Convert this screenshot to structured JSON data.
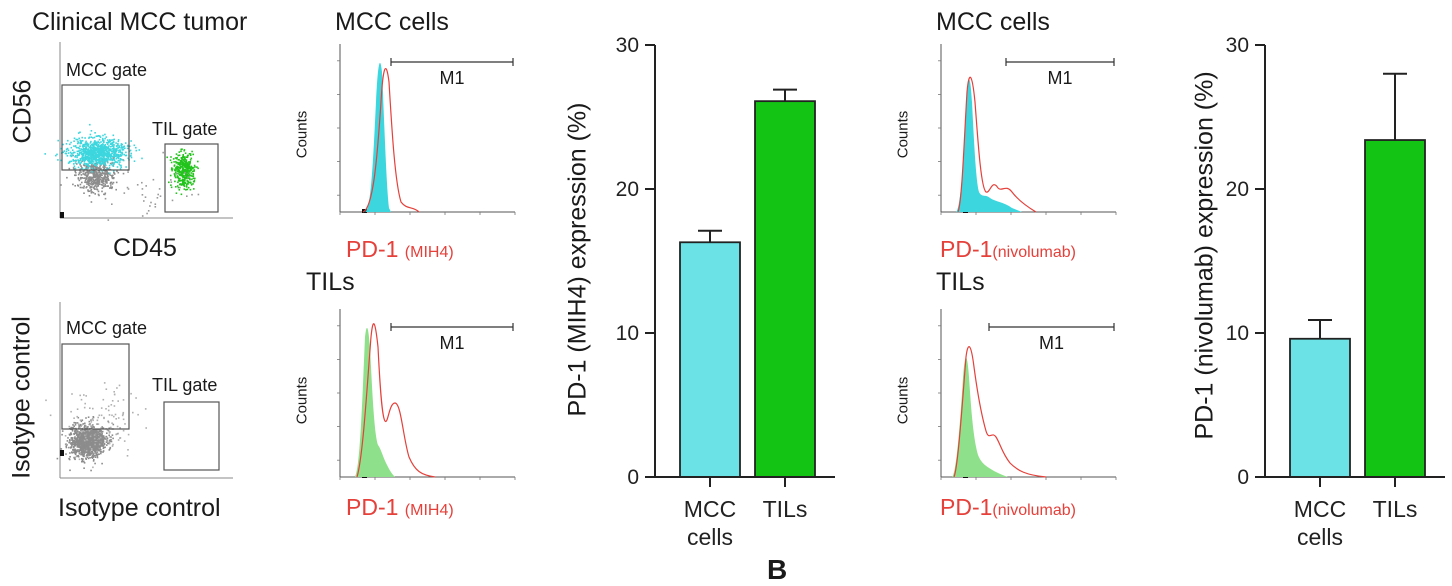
{
  "flow": {
    "top": {
      "title": "Clinical MCC tumor",
      "xlabel": "CD45",
      "ylabel": "CD56",
      "gate1": "MCC gate",
      "gate2": "TIL gate",
      "dot1_color": "#3cd6de",
      "dot2_color": "#22c41c"
    },
    "bottom": {
      "xlabel": "Isotype control",
      "ylabel": "Isotype control",
      "gate1": "MCC gate",
      "gate2": "TIL gate",
      "dot_color": "#8c8c8c"
    }
  },
  "histograms": [
    {
      "title": "MCC cells",
      "ylabel": "Counts",
      "xlabel_main": "PD-1",
      "xlabel_sub": "(MIH4)",
      "marker": "M1",
      "fill": "#3cd6de"
    },
    {
      "title": "TILs",
      "ylabel": "Counts",
      "xlabel_main": "PD-1",
      "xlabel_sub": "(MIH4)",
      "marker": "M1",
      "fill": "#8fe08a"
    },
    {
      "title": "MCC cells",
      "ylabel": "Counts",
      "xlabel_main": "PD-1",
      "xlabel_sub": "(nivolumab)",
      "marker": "M1",
      "fill": "#3cd6de"
    },
    {
      "title": "TILs",
      "ylabel": "Counts",
      "xlabel_main": "PD-1",
      "xlabel_sub": "(nivolumab)",
      "marker": "M1",
      "fill": "#8fe08a"
    }
  ],
  "chart_data": [
    {
      "type": "bar",
      "categories": [
        "MCC cells",
        "TILs"
      ],
      "values": [
        16.3,
        26.1
      ],
      "errors": [
        0.8,
        0.8
      ],
      "colors": [
        "#6ae2e6",
        "#14c414"
      ],
      "ylabel": "PD-1 (MIH4) expression (%)",
      "ylim": [
        0,
        30
      ],
      "yticks": [
        0,
        10,
        20,
        30
      ]
    },
    {
      "type": "bar",
      "categories": [
        "MCC cells",
        "TILs"
      ],
      "values": [
        9.6,
        23.4
      ],
      "errors": [
        1.3,
        4.6
      ],
      "colors": [
        "#6ae2e6",
        "#14c414"
      ],
      "ylabel": "PD-1 (nivolumab) expression (%)",
      "ylim": [
        0,
        30
      ],
      "yticks": [
        0,
        10,
        20,
        30
      ]
    }
  ],
  "panel_letter": "B"
}
